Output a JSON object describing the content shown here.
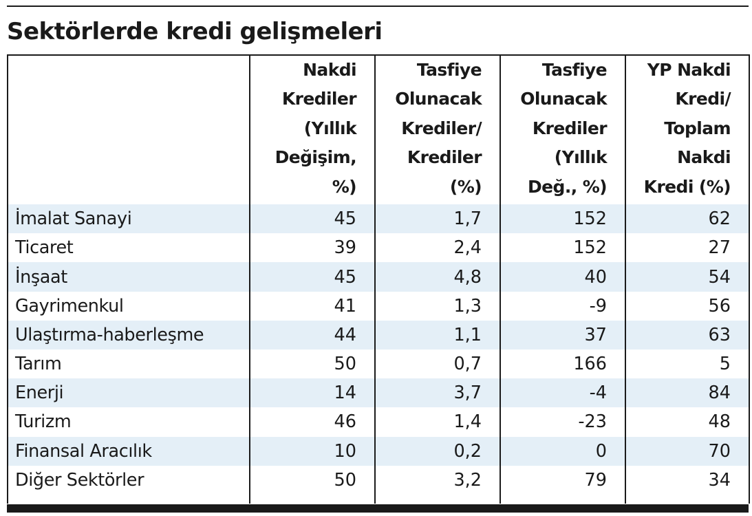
{
  "title": "Sektörlerde kredi gelişmeleri",
  "chart_data": {
    "type": "table",
    "title": "Sektörlerde kredi gelişmeleri",
    "columns": [
      {
        "label_lines": [],
        "label": ""
      },
      {
        "label_lines": [
          "Nakdi",
          "Krediler",
          "(Yıllık",
          "Değişim,",
          "%)"
        ],
        "label": "Nakdi Krediler (Yıllık Değişim, %)"
      },
      {
        "label_lines": [
          "Tasfiye",
          "Olunacak",
          "Krediler/",
          "Krediler",
          "(%)"
        ],
        "label": "Tasfiye Olunacak Krediler/ Krediler (%)"
      },
      {
        "label_lines": [
          "Tasfiye",
          "Olunacak",
          "Krediler",
          "(Yıllık",
          "Değ., %)"
        ],
        "label": "Tasfiye Olunacak Krediler (Yıllık Değ., %)"
      },
      {
        "label_lines": [
          "YP Nakdi",
          "Kredi/",
          "Toplam",
          "Nakdi",
          "Kredi (%)"
        ],
        "label": "YP Nakdi Kredi/ Toplam Nakdi Kredi (%)"
      }
    ],
    "rows": [
      {
        "sector": "İmalat Sanayi",
        "values": [
          "45",
          "1,7",
          "152",
          "62"
        ]
      },
      {
        "sector": "Ticaret",
        "values": [
          "39",
          "2,4",
          "152",
          "27"
        ]
      },
      {
        "sector": "İnşaat",
        "values": [
          "45",
          "4,8",
          "40",
          "54"
        ]
      },
      {
        "sector": "Gayrimenkul",
        "values": [
          "41",
          "1,3",
          "-9",
          "56"
        ]
      },
      {
        "sector": "Ulaştırma-haberleşme",
        "values": [
          "44",
          "1,1",
          "37",
          "63"
        ]
      },
      {
        "sector": "Tarım",
        "values": [
          "50",
          "0,7",
          "166",
          "5"
        ]
      },
      {
        "sector": "Enerji",
        "values": [
          "14",
          "3,7",
          "-4",
          "84"
        ]
      },
      {
        "sector": "Turizm",
        "values": [
          "46",
          "1,4",
          "-23",
          "48"
        ]
      },
      {
        "sector": "Finansal Aracılık",
        "values": [
          "10",
          "0,2",
          "0",
          "70"
        ]
      },
      {
        "sector": "Diğer Sektörler",
        "values": [
          "50",
          "3,2",
          "79",
          "34"
        ]
      }
    ]
  },
  "colors": {
    "stripe": "#e4eff7",
    "rule": "#1a1a1a",
    "text": "#1a1a1a"
  }
}
